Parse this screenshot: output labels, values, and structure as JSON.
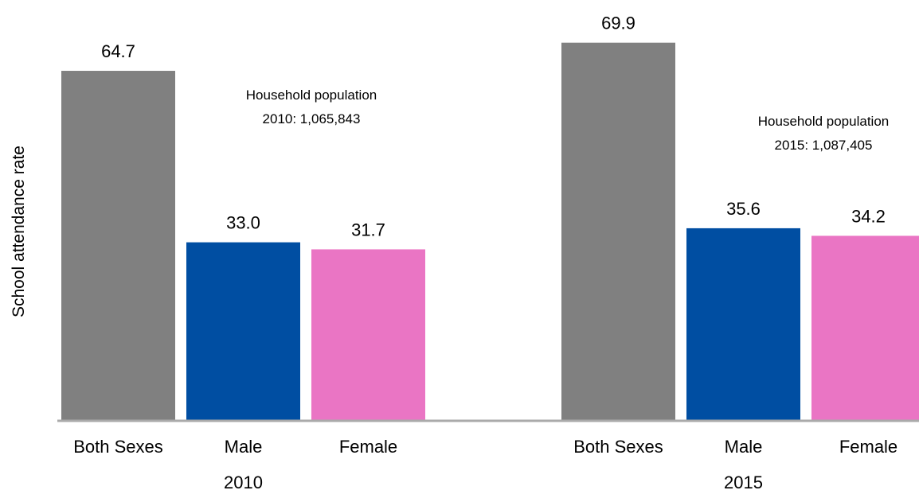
{
  "chart_data": {
    "type": "bar",
    "ylabel": "School attendance rate",
    "ylim": [
      0,
      72
    ],
    "grid": false,
    "legend": "none",
    "groups": [
      {
        "label": "2010",
        "categories": [
          "Both Sexes",
          "Male",
          "Female"
        ],
        "values": [
          64.7,
          33.0,
          31.7
        ],
        "value_labels": [
          "64.7",
          "33.0",
          "31.7"
        ],
        "colors": [
          "#808080",
          "#004ea2",
          "#ea75c4"
        ],
        "note": [
          "Household population",
          "2010: 1,065,843"
        ]
      },
      {
        "label": "2015",
        "categories": [
          "Both Sexes",
          "Male",
          "Female"
        ],
        "values": [
          69.9,
          35.6,
          34.2
        ],
        "value_labels": [
          "69.9",
          "35.6",
          "34.2"
        ],
        "colors": [
          "#808080",
          "#004ea2",
          "#ea75c4"
        ],
        "note": [
          "Household population",
          "2015: 1,087,405"
        ]
      }
    ],
    "axis_color": "#aaaaaa"
  }
}
